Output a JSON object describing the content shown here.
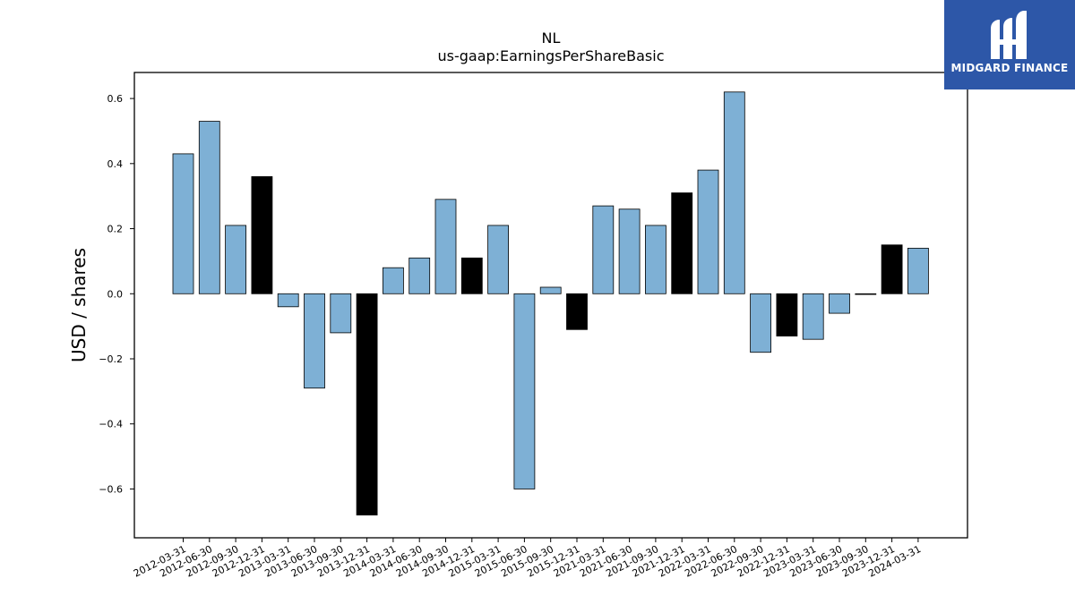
{
  "chart_data": {
    "type": "bar",
    "title": "NL",
    "subtitle": "us-gaap:EarningsPerShareBasic",
    "xlabel": "",
    "ylabel": "USD / shares",
    "ylim": [
      -0.75,
      0.68
    ],
    "yticks": [
      -0.6,
      -0.4,
      -0.2,
      0.0,
      0.2,
      0.4,
      0.6
    ],
    "ytick_labels": [
      "−0.6",
      "−0.4",
      "−0.2",
      "0.0",
      "0.2",
      "0.4",
      "0.6"
    ],
    "categories": [
      "2012-03-31",
      "2012-06-30",
      "2012-09-30",
      "2012-12-31",
      "2013-03-31",
      "2013-06-30",
      "2013-09-30",
      "2013-12-31",
      "2014-03-31",
      "2014-06-30",
      "2014-09-30",
      "2014-12-31",
      "2015-03-31",
      "2015-06-30",
      "2015-09-30",
      "2015-12-31",
      "2021-03-31",
      "2021-06-30",
      "2021-09-30",
      "2021-12-31",
      "2022-03-31",
      "2022-06-30",
      "2022-09-30",
      "2022-12-31",
      "2023-03-31",
      "2023-06-30",
      "2023-09-30",
      "2023-12-31",
      "2024-03-31"
    ],
    "values": [
      0.43,
      0.53,
      0.21,
      0.36,
      -0.04,
      -0.29,
      -0.12,
      -0.68,
      0.08,
      0.11,
      0.29,
      0.11,
      0.21,
      -0.6,
      0.02,
      -0.11,
      0.27,
      0.26,
      0.21,
      0.31,
      0.38,
      0.62,
      -0.18,
      -0.13,
      -0.14,
      -0.06,
      0.0,
      0.15,
      0.14
    ],
    "highlight": [
      false,
      false,
      false,
      true,
      false,
      false,
      false,
      true,
      false,
      false,
      false,
      true,
      false,
      false,
      false,
      true,
      false,
      false,
      false,
      true,
      false,
      false,
      false,
      true,
      false,
      false,
      false,
      true,
      false
    ],
    "colors": {
      "bar": "#7eb0d5",
      "highlight": "#000000",
      "edge": "#000000"
    },
    "grid": false,
    "legend": "none"
  },
  "logo": {
    "text": "MIDGARD FINANCE",
    "bg": "#2d57a8"
  }
}
